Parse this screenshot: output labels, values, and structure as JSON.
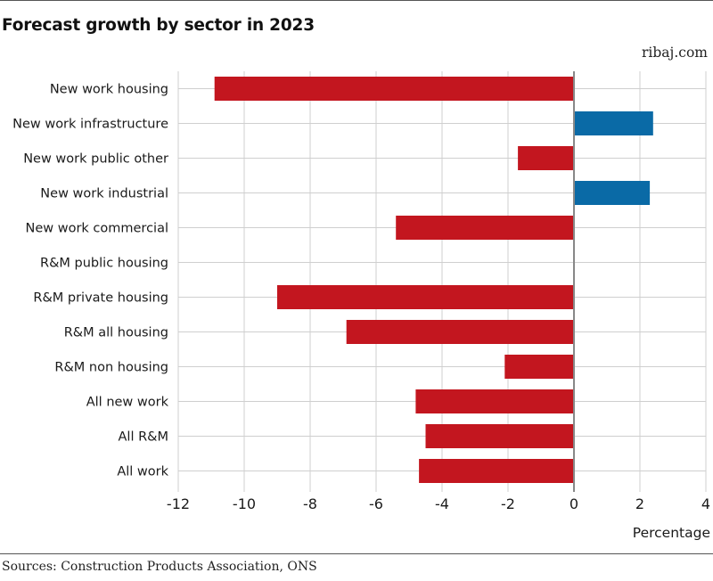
{
  "header": {
    "title": "Forecast growth by sector in 2023",
    "brand": "ribaj.com"
  },
  "footer": {
    "source": "Sources: Construction Products Association, ONS"
  },
  "colors": {
    "negative": "#c3161f",
    "positive": "#0a6aa6",
    "grid": "#cfcfcf",
    "zero_line": "#888888"
  },
  "chart_data": {
    "type": "bar",
    "orientation": "horizontal",
    "title": "Forecast growth by sector in 2023",
    "xlabel": "Percentage",
    "ylabel": "",
    "xlim": [
      -12,
      4
    ],
    "xticks": [
      -12,
      -10,
      -8,
      -6,
      -4,
      -2,
      0,
      2,
      4
    ],
    "xtick_labels": [
      "-12",
      "-10",
      "-8",
      "-6",
      "-4",
      "-2",
      "0",
      "2",
      "4"
    ],
    "grid": true,
    "categories": [
      "New work housing",
      "New work infrastructure",
      "New work public other",
      "New work industrial",
      "New work commercial",
      "R&M public housing",
      "R&M private housing",
      "R&M all housing",
      "R&M non housing",
      "All new work",
      "All R&M",
      "All work"
    ],
    "values": [
      -10.9,
      2.4,
      -1.7,
      2.3,
      -5.4,
      0,
      -9.0,
      -6.9,
      -2.1,
      -4.8,
      -4.5,
      -4.7
    ]
  }
}
